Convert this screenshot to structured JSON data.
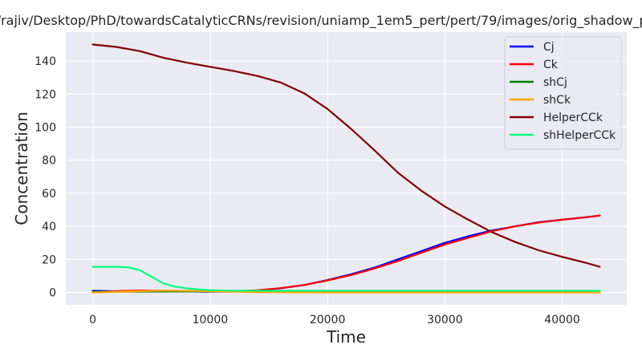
{
  "chart_data": {
    "type": "line",
    "title": "sers/rajiv/Desktop/PhD/towardsCatalyticCRNs/revision/uniamp_1em5_pert/pert/79/images/orig_shadow_pert_",
    "xlabel": "Time",
    "ylabel": "Concentration",
    "xlim": [
      -2300,
      45500
    ],
    "ylim": [
      -7.5,
      157.5
    ],
    "xticks": [
      0,
      10000,
      20000,
      30000,
      40000
    ],
    "yticks": [
      0,
      20,
      40,
      60,
      80,
      100,
      120,
      140
    ],
    "grid": true,
    "background": "#eaeaf2",
    "legend_position": "top-right",
    "series": [
      {
        "name": "Cj",
        "color": "#0000ff",
        "points": [
          [
            0,
            1
          ],
          [
            2000,
            0.7
          ],
          [
            4000,
            0.8
          ],
          [
            6000,
            0.8
          ],
          [
            8000,
            0.6
          ],
          [
            10000,
            0.4
          ],
          [
            12000,
            0.5
          ],
          [
            14000,
            1.2
          ],
          [
            16000,
            2.5
          ],
          [
            18000,
            4.5
          ],
          [
            20000,
            7.5
          ],
          [
            22000,
            11
          ],
          [
            24000,
            15
          ],
          [
            26000,
            20
          ],
          [
            28000,
            25
          ],
          [
            30000,
            30
          ],
          [
            32000,
            34
          ],
          [
            34000,
            37.5
          ],
          [
            36000,
            40
          ],
          [
            38000,
            42.5
          ],
          [
            40000,
            44
          ],
          [
            42000,
            45.5
          ],
          [
            43200,
            46.5
          ]
        ]
      },
      {
        "name": "Ck",
        "color": "#ff0000",
        "points": [
          [
            0,
            0
          ],
          [
            2000,
            0.8
          ],
          [
            4000,
            1.2
          ],
          [
            6000,
            1
          ],
          [
            8000,
            0.8
          ],
          [
            10000,
            0.6
          ],
          [
            12000,
            0.7
          ],
          [
            14000,
            1.3
          ],
          [
            16000,
            2.6
          ],
          [
            18000,
            4.5
          ],
          [
            20000,
            7.3
          ],
          [
            22000,
            10.5
          ],
          [
            24000,
            14.5
          ],
          [
            26000,
            19
          ],
          [
            28000,
            24
          ],
          [
            30000,
            29
          ],
          [
            32000,
            33
          ],
          [
            34000,
            37
          ],
          [
            36000,
            40
          ],
          [
            38000,
            42.3
          ],
          [
            40000,
            44
          ],
          [
            42000,
            45.5
          ],
          [
            43200,
            46.5
          ]
        ]
      },
      {
        "name": "shCj",
        "color": "#008000",
        "points": [
          [
            0,
            0.4
          ],
          [
            5000,
            0.5
          ],
          [
            10000,
            0.6
          ],
          [
            15000,
            0.6
          ],
          [
            20000,
            0.6
          ],
          [
            25000,
            0.6
          ],
          [
            30000,
            0.6
          ],
          [
            35000,
            0.6
          ],
          [
            40000,
            0.6
          ],
          [
            43200,
            0.6
          ]
        ]
      },
      {
        "name": "shCk",
        "color": "#ffa500",
        "points": [
          [
            0,
            0
          ],
          [
            2000,
            0.3
          ],
          [
            4000,
            0.8
          ],
          [
            6000,
            1.1
          ],
          [
            8000,
            1
          ],
          [
            10000,
            0.7
          ],
          [
            12000,
            0.4
          ],
          [
            14000,
            0.2
          ],
          [
            16000,
            0.1
          ],
          [
            20000,
            0
          ],
          [
            30000,
            0
          ],
          [
            40000,
            0
          ],
          [
            43200,
            0
          ]
        ]
      },
      {
        "name": "HelperCCk",
        "color": "#800000",
        "points": [
          [
            0,
            150
          ],
          [
            2000,
            148.5
          ],
          [
            4000,
            146
          ],
          [
            6000,
            142
          ],
          [
            8000,
            139
          ],
          [
            10000,
            136.5
          ],
          [
            12000,
            134
          ],
          [
            14000,
            131
          ],
          [
            16000,
            127
          ],
          [
            18000,
            120.5
          ],
          [
            20000,
            111
          ],
          [
            22000,
            99
          ],
          [
            24000,
            86
          ],
          [
            26000,
            72.5
          ],
          [
            28000,
            61.5
          ],
          [
            30000,
            52
          ],
          [
            32000,
            44
          ],
          [
            34000,
            36.5
          ],
          [
            36000,
            30.5
          ],
          [
            38000,
            25.5
          ],
          [
            40000,
            21.5
          ],
          [
            42000,
            18
          ],
          [
            43200,
            15.5
          ]
        ]
      },
      {
        "name": "shHelperCCk",
        "color": "#00ff7f",
        "points": [
          [
            0,
            15.5
          ],
          [
            2000,
            15.5
          ],
          [
            3000,
            15.2
          ],
          [
            4000,
            13.5
          ],
          [
            5000,
            9.5
          ],
          [
            6000,
            5.5
          ],
          [
            7000,
            3.5
          ],
          [
            8000,
            2.5
          ],
          [
            9000,
            1.8
          ],
          [
            10000,
            1.4
          ],
          [
            12000,
            1.1
          ],
          [
            15000,
            1
          ],
          [
            20000,
            1
          ],
          [
            30000,
            1
          ],
          [
            40000,
            1
          ],
          [
            43200,
            1
          ]
        ]
      }
    ]
  }
}
